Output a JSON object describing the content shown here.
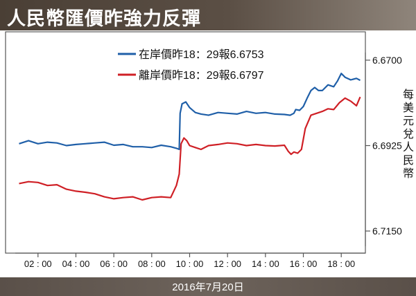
{
  "header": {
    "title": "人民幣匯價昨強力反彈"
  },
  "footer": {
    "date": "2016年7月20日"
  },
  "chart_data": {
    "type": "line",
    "y_axis_label": "每美元兌人民幣",
    "y_ticks": [
      "6.6700",
      "6.6925",
      "6.7150"
    ],
    "ylim": [
      6.719,
      6.668
    ],
    "y_inverted": true,
    "x_ticks": [
      "02",
      "04",
      "06",
      "08",
      "10",
      "12",
      "14",
      "16",
      "18"
    ],
    "x_tick_suffix": "00",
    "x_tick_hours": [
      2,
      4,
      6,
      8,
      10,
      12,
      14,
      16,
      18
    ],
    "xlim": [
      0.8,
      19.2
    ],
    "grid": false,
    "legend_position": "top-center",
    "series": [
      {
        "name": "在岸價昨18：29報6.6753",
        "color": "#1f5fa8",
        "x": [
          1.0,
          1.5,
          2.0,
          2.5,
          3.0,
          3.5,
          4.0,
          4.5,
          5.0,
          5.5,
          6.0,
          6.5,
          7.0,
          7.5,
          8.0,
          8.5,
          9.0,
          9.3,
          9.45,
          9.5,
          9.6,
          9.8,
          10.0,
          10.3,
          10.6,
          11.0,
          11.5,
          12.0,
          12.5,
          13.0,
          13.5,
          14.0,
          14.5,
          15.0,
          15.3,
          15.5,
          15.6,
          15.8,
          16.0,
          16.2,
          16.4,
          16.6,
          16.8,
          17.0,
          17.3,
          17.6,
          17.8,
          18.0,
          18.2,
          18.5,
          18.8,
          19.0
        ],
        "y": [
          6.692,
          6.6912,
          6.692,
          6.6916,
          6.6918,
          6.6925,
          6.6922,
          6.692,
          6.6918,
          6.6916,
          6.6924,
          6.6922,
          6.6928,
          6.6928,
          6.693,
          6.6924,
          6.6928,
          6.6932,
          6.6935,
          6.684,
          6.6815,
          6.681,
          6.6825,
          6.6838,
          6.6842,
          6.6845,
          6.6838,
          6.684,
          6.6842,
          6.6835,
          6.684,
          6.6838,
          6.6842,
          6.6843,
          6.6845,
          6.684,
          6.683,
          6.6832,
          6.6822,
          6.68,
          6.678,
          6.6772,
          6.678,
          6.678,
          6.6765,
          6.677,
          6.6755,
          6.6735,
          6.6745,
          6.6752,
          6.6748,
          6.6753
        ]
      },
      {
        "name": "離岸價昨18：29報6.6797",
        "color": "#cf1f25",
        "x": [
          1.0,
          1.5,
          2.0,
          2.5,
          3.0,
          3.5,
          4.0,
          4.5,
          5.0,
          5.5,
          6.0,
          6.5,
          7.0,
          7.5,
          8.0,
          8.5,
          9.0,
          9.3,
          9.45,
          9.55,
          9.7,
          9.85,
          10.0,
          10.3,
          10.6,
          11.0,
          11.5,
          12.0,
          12.5,
          13.0,
          13.5,
          14.0,
          14.5,
          15.0,
          15.2,
          15.35,
          15.5,
          15.7,
          15.9,
          16.1,
          16.4,
          16.7,
          17.0,
          17.3,
          17.6,
          17.9,
          18.2,
          18.5,
          18.8,
          19.0
        ],
        "y": [
          6.7025,
          6.702,
          6.7022,
          6.703,
          6.7028,
          6.704,
          6.7045,
          6.7048,
          6.7052,
          6.706,
          6.7065,
          6.7062,
          6.706,
          6.7068,
          6.7062,
          6.706,
          6.7062,
          6.703,
          6.7,
          6.692,
          6.6905,
          6.6912,
          6.6925,
          6.693,
          6.6935,
          6.6925,
          6.6922,
          6.6918,
          6.692,
          6.6925,
          6.6922,
          6.6925,
          6.6926,
          6.6924,
          6.694,
          6.6948,
          6.6942,
          6.6945,
          6.6935,
          6.688,
          6.6845,
          6.684,
          6.6835,
          6.6828,
          6.683,
          6.6812,
          6.68,
          6.6808,
          6.682,
          6.6797
        ]
      }
    ]
  }
}
